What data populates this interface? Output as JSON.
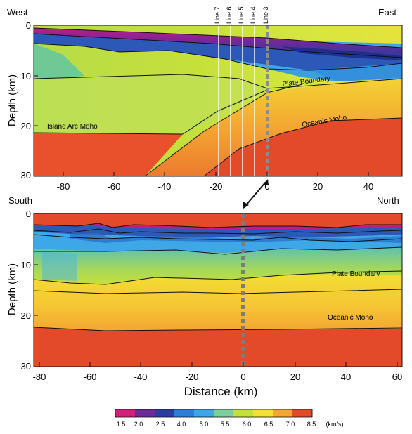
{
  "top_panel": {
    "left_label": "West",
    "right_label": "East",
    "ylabel": "Depth (km)",
    "y_ticks": [
      "0",
      "10",
      "20",
      "30"
    ],
    "x_ticks": [
      "-80",
      "-60",
      "-40",
      "-20",
      "0",
      "20",
      "40"
    ],
    "line_labels": [
      "Line 7",
      "Line 6",
      "Line 5",
      "Line 4",
      "Line 3"
    ],
    "annotations": {
      "plate_boundary": "Plate Boundary",
      "oceanic_moho": "Oceanic Moho",
      "island_arc_moho": "Island Arc Moho"
    }
  },
  "bottom_panel": {
    "left_label": "South",
    "right_label": "North",
    "ylabel": "Depth (km)",
    "y_ticks": [
      "0",
      "10",
      "20",
      "30"
    ],
    "x_ticks": [
      "-80",
      "-60",
      "-40",
      "-20",
      "0",
      "20",
      "40",
      "60"
    ],
    "xlabel": "Distance (km)",
    "annotations": {
      "plate_boundary": "Plate Boundary",
      "oceanic_moho": "Oceanic Moho"
    }
  },
  "colorbar": {
    "ticks": [
      "1.5",
      "2.0",
      "2.5",
      "4.0",
      "5.0",
      "5.5",
      "6.0",
      "6.5",
      "7.0",
      "8.5"
    ],
    "unit": "(km/s)",
    "colors": [
      "#d0207c",
      "#6a2a9a",
      "#2a3c9e",
      "#2e7ed8",
      "#3ca6e8",
      "#7ccf9a",
      "#c6e03a",
      "#f2e034",
      "#f4a632",
      "#e24a2a"
    ]
  }
}
